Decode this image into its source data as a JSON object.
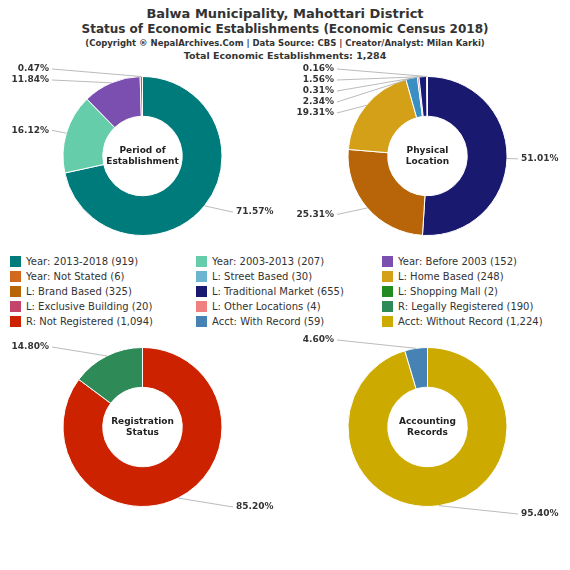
{
  "title": [
    "Balwa Municipality, Mahottari District",
    "Status of Economic Establishments (Economic Census 2018)"
  ],
  "subtitle": [
    "(Copyright ® NepalArchives.Com | Data Source: CBS | Creator/Analyst: Milan Karki)",
    "Total Economic Establishments: 1,284"
  ],
  "series": [
    {
      "name": "Year: 2013-2018 (919)",
      "color": "#007b7b"
    },
    {
      "name": "Year: Not Stated (6)",
      "color": "#d2691e"
    },
    {
      "name": "L: Brand Based (325)",
      "color": "#b8650a"
    },
    {
      "name": "L: Exclusive Building (20)",
      "color": "#c44569"
    },
    {
      "name": "R: Not Registered (1,094)",
      "color": "#cc2200"
    },
    {
      "name": "Year: 2003-2013 (207)",
      "color": "#66cdaa"
    },
    {
      "name": "L: Street Based (30)",
      "color": "#6cb4d0"
    },
    {
      "name": "L: Traditional Market (655)",
      "color": "#191970"
    },
    {
      "name": "L: Other Locations (4)",
      "color": "#f08080"
    },
    {
      "name": "Acct: With Record (59)",
      "color": "#4682b4"
    },
    {
      "name": "Year: Before 2003 (152)",
      "color": "#7b4faf"
    },
    {
      "name": "L: Home Based (248)",
      "color": "#d4a017"
    },
    {
      "name": "L: Shopping Mall (2)",
      "color": "#228b22"
    },
    {
      "name": "R: Legally Registered (190)",
      "color": "#2e8b57"
    },
    {
      "name": "Acct: Without Record (1,224)",
      "color": "#ccaa00"
    }
  ],
  "chart_data": [
    {
      "type": "pie",
      "title": "Period of\nEstablishment",
      "values": [
        71.57,
        16.12,
        11.84,
        0.47
      ],
      "value_labels": [
        "71.57%",
        "16.12%",
        "11.84%",
        "0.47%"
      ],
      "colors": [
        "#007b7b",
        "#66cdaa",
        "#7b4faf",
        "#b5651d"
      ],
      "data_labels": true
    },
    {
      "type": "pie",
      "title": "Physical\nLocation",
      "values": [
        51.01,
        25.31,
        19.31,
        2.34,
        0.31,
        1.56,
        0.16
      ],
      "value_labels": [
        "51.01%",
        "25.31%",
        "19.31%",
        "2.34%",
        "0.31%",
        "1.56%",
        "0.16%"
      ],
      "colors": [
        "#191970",
        "#b8650a",
        "#d4a017",
        "#3a8fc2",
        "#c44569",
        "#1a1a7a",
        "#b8a000"
      ],
      "data_labels": true
    },
    {
      "type": "pie",
      "title": "Registration\nStatus",
      "values": [
        85.2,
        14.8
      ],
      "value_labels": [
        "85.20%",
        "14.80%"
      ],
      "colors": [
        "#cc2200",
        "#2e8b57"
      ],
      "data_labels": true
    },
    {
      "type": "pie",
      "title": "Accounting\nRecords",
      "values": [
        95.4,
        4.6
      ],
      "value_labels": [
        "95.40%",
        "4.60%"
      ],
      "colors": [
        "#ccaa00",
        "#4682b4"
      ],
      "data_labels": true
    }
  ]
}
